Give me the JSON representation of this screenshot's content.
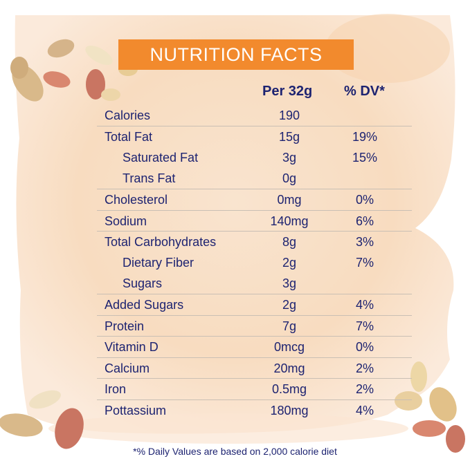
{
  "title": "NUTRITION FACTS",
  "columns": {
    "per": "Per 32g",
    "dv": "% DV*"
  },
  "rows": [
    {
      "name": "Calories",
      "per": "190",
      "dv": ""
    },
    {
      "name": "Total Fat",
      "per": "15g",
      "dv": "19%"
    },
    {
      "name": "Saturated Fat",
      "per": "3g",
      "dv": "15%"
    },
    {
      "name": "Trans Fat",
      "per": "0g",
      "dv": ""
    },
    {
      "name": "Cholesterol",
      "per": "0mg",
      "dv": "0%"
    },
    {
      "name": "Sodium",
      "per": "140mg",
      "dv": "6%"
    },
    {
      "name": "Total Carbohydrates",
      "per": "8g",
      "dv": "3%"
    },
    {
      "name": "Dietary Fiber",
      "per": "2g",
      "dv": "7%"
    },
    {
      "name": "Sugars",
      "per": "3g",
      "dv": ""
    },
    {
      "name": "Added Sugars",
      "per": "2g",
      "dv": "4%"
    },
    {
      "name": "Protein",
      "per": "7g",
      "dv": "7%"
    },
    {
      "name": "Vitamin D",
      "per": "0mcg",
      "dv": "0%"
    },
    {
      "name": "Calcium",
      "per": "20mg",
      "dv": "2%"
    },
    {
      "name": "Iron",
      "per": "0.5mg",
      "dv": "2%"
    },
    {
      "name": "Pottassium",
      "per": "180mg",
      "dv": "4%"
    }
  ],
  "footnote": "*% Daily Values are based on 2,000 calorie diet",
  "colors": {
    "accent": "#f28a2d",
    "text": "#1d2371",
    "wash": "#f8dcc0"
  }
}
